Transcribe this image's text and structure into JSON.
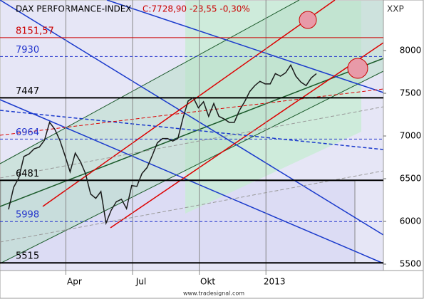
{
  "chart_data": {
    "type": "line",
    "title": "DAX PERFORMANCE-INDEX",
    "quote": "C:7728,90 -23,55 -0,30%",
    "symbol": "XXP",
    "footer": "www.tradesignal.com",
    "categories": [
      null,
      null,
      null,
      null,
      null,
      null,
      null,
      null,
      null,
      null,
      null,
      null,
      "Apr",
      null,
      null,
      null,
      null,
      null,
      null,
      null,
      null,
      null,
      null,
      null,
      null,
      "Jul",
      null,
      null,
      null,
      null,
      null,
      null,
      null,
      null,
      null,
      null,
      null,
      null,
      "Okt",
      null,
      null,
      null,
      null,
      null,
      null,
      null,
      null,
      null,
      null,
      null,
      null,
      "2013",
      null,
      null,
      null,
      null,
      null,
      null,
      null,
      null,
      null
    ],
    "series": [
      {
        "color": "#1a1a1a",
        "values": [
          6140,
          6400,
          6510,
          6760,
          6790,
          6850,
          6870,
          6950,
          7160,
          7080,
          6950,
          6770,
          6580,
          6800,
          6700,
          6560,
          6320,
          6270,
          6350,
          5980,
          6130,
          6230,
          6260,
          6150,
          6420,
          6410,
          6560,
          6630,
          6770,
          6920,
          6970,
          6970,
          6940,
          6970,
          7210,
          7410,
          7450,
          7330,
          7400,
          7230,
          7380,
          7230,
          7200,
          7160,
          7160,
          7300,
          7400,
          7520,
          7590,
          7640,
          7610,
          7610,
          7730,
          7700,
          7740,
          7830,
          7700,
          7630,
          7590,
          7680,
          7730
        ]
      }
    ],
    "ylim": [
      5425,
      8592
    ],
    "yticks": [
      5500,
      6000,
      6500,
      7000,
      7500,
      8000
    ],
    "levels": [
      {
        "value": 8151.57,
        "label": "8151,57",
        "color": "#cc0000"
      },
      {
        "value": 7930,
        "label": "7930",
        "color": "#2233cc"
      },
      {
        "value": 7447,
        "label": "7447",
        "color": "#000000"
      },
      {
        "value": 6964,
        "label": "6964",
        "color": "#2233cc"
      },
      {
        "value": 6481,
        "label": "6481",
        "color": "#000000"
      },
      {
        "value": 5998,
        "label": "5998",
        "color": "#2233cc"
      },
      {
        "value": 5515,
        "label": "5515",
        "color": "#000000"
      }
    ]
  }
}
